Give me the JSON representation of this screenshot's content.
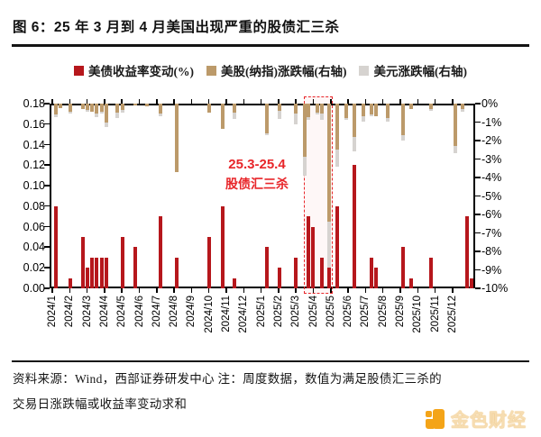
{
  "title": "图 6：25 年 3 月到 4 月美国出现严重的股债汇三杀",
  "legend": [
    {
      "label": "美债收益率变动(%)",
      "color": "#b6171c"
    },
    {
      "label": "美股(纳指)涨跌幅(右轴)",
      "color": "#bc9a6a"
    },
    {
      "label": "美元涨跌幅(右轴)",
      "color": "#d6d3d0"
    }
  ],
  "footer": {
    "line1": "资料来源：Wind，西部证券研发中心 注：周度数据，数值为满足股债汇三杀的",
    "line2": "交易日涨跌幅或收益率变动求和"
  },
  "watermark": {
    "text": "金色财经",
    "color": "#f4a418"
  },
  "chart_data": {
    "type": "bar",
    "title": "25年3月到4月美国出现严重的股债汇三杀",
    "note": "周度数据，数值为满足股债汇三杀的交易日涨跌幅或收益率变动求和",
    "left_axis": {
      "min": 0,
      "max": 0.18,
      "tick_step": 0.02,
      "ticks": [
        "0.18",
        "0.16",
        "0.14",
        "0.12",
        "0.10",
        "0.08",
        "0.06",
        "0.04",
        "0.02",
        "0.00"
      ]
    },
    "right_axis": {
      "min": -10,
      "max": 0,
      "tick_step": 1,
      "unit": "%",
      "ticks": [
        "0%",
        "-1%",
        "-2%",
        "-3%",
        "-4%",
        "-5%",
        "-6%",
        "-7%",
        "-8%",
        "-9%",
        "-10%"
      ]
    },
    "x_labels": [
      "2024/1",
      "2024/2",
      "2024/3",
      "2024/4",
      "2024/5",
      "2024/6",
      "2024/7",
      "2024/8",
      "2024/9",
      "2024/10",
      "2024/11",
      "2024/12",
      "2025/1",
      "2025/2",
      "2025/3",
      "2025/4",
      "2025/5",
      "2025/6",
      "2025/7",
      "2025/8",
      "2025/9",
      "2025/10",
      "2025/11",
      "2025/12"
    ],
    "series": [
      {
        "name": "美债收益率变动(%)",
        "axis": "left",
        "color": "#b6171c",
        "key": "bond"
      },
      {
        "name": "美股(纳指)涨跌幅(右轴)",
        "axis": "right",
        "color": "#bc9a6a",
        "key": "nasdaq"
      },
      {
        "name": "美元涨跌幅(右轴)",
        "axis": "right",
        "color": "#d6d3d0",
        "key": "usd"
      }
    ],
    "pos_unit": "months after 2024/1 tick (weekly bars)",
    "bars": [
      {
        "m": 0.21,
        "bond": 0.08,
        "nasdaq": -0.6,
        "usd": -0.15
      },
      {
        "m": 0.47,
        "nasdaq": -0.25
      },
      {
        "m": 1.04,
        "bond": 0.01,
        "nasdaq": -0.45,
        "usd": -0.1
      },
      {
        "m": 1.76,
        "bond": 0.05,
        "nasdaq": -0.3
      },
      {
        "m": 2.02,
        "bond": 0.02,
        "nasdaq": -0.35,
        "usd": -0.1
      },
      {
        "m": 2.28,
        "bond": 0.03,
        "nasdaq": -0.45
      },
      {
        "m": 2.54,
        "bond": 0.03,
        "nasdaq": -0.55,
        "usd": -0.2
      },
      {
        "m": 2.85,
        "bond": 0.03,
        "nasdaq": -0.45,
        "usd": -0.1
      },
      {
        "m": 3.11,
        "bond": 0.03,
        "nasdaq": -1.0,
        "usd": -0.25
      },
      {
        "m": 3.73,
        "nasdaq": -0.5,
        "usd": -0.3
      },
      {
        "m": 4.04,
        "bond": 0.05,
        "nasdaq": -0.35,
        "usd": -0.15
      },
      {
        "m": 4.77,
        "bond": 0.04,
        "nasdaq": -0.1
      },
      {
        "m": 5.44,
        "nasdaq": -0.15
      },
      {
        "m": 6.22,
        "bond": 0.07,
        "nasdaq": -0.55,
        "usd": -0.15
      },
      {
        "m": 7.15,
        "bond": 0.03,
        "nasdaq": -3.7
      },
      {
        "m": 9.01,
        "bond": 0.05,
        "nasdaq": -0.5
      },
      {
        "m": 9.79,
        "bond": 0.08,
        "nasdaq": -1.35
      },
      {
        "m": 10.47,
        "bond": 0.01,
        "nasdaq": -0.5,
        "usd": -0.35
      },
      {
        "m": 12.33,
        "bond": 0.04,
        "nasdaq": -1.6,
        "usd": -0.1
      },
      {
        "m": 13.06,
        "bond": 0.02,
        "nasdaq": -0.4,
        "usd": -0.45
      },
      {
        "m": 13.99,
        "bond": 0.03,
        "nasdaq": -0.55,
        "usd": -0.55
      },
      {
        "m": 14.51,
        "nasdaq": -2.9,
        "usd": -1.0
      },
      {
        "m": 14.72,
        "bond": 0.07,
        "nasdaq": -0.75,
        "usd": -0.15
      },
      {
        "m": 14.97,
        "bond": 0.06
      },
      {
        "m": 15.23,
        "nasdaq": -0.5,
        "usd": -0.1
      },
      {
        "m": 15.49,
        "bond": 0.03,
        "nasdaq": -0.55,
        "usd": -0.35
      },
      {
        "m": 15.91,
        "bond": 0.02,
        "nasdaq": -6.4,
        "usd": -2.5
      },
      {
        "m": 16.37,
        "bond": 0.08,
        "nasdaq": -2.5,
        "usd": -0.9
      },
      {
        "m": 16.89,
        "nasdaq": -0.8,
        "usd": -0.1
      },
      {
        "m": 17.36,
        "bond": 0.12,
        "nasdaq": -1.8,
        "usd": -0.8
      },
      {
        "m": 17.88,
        "nasdaq": -0.7,
        "usd": -0.3
      },
      {
        "m": 18.34,
        "bond": 0.03,
        "nasdaq": -0.6,
        "usd": -0.1
      },
      {
        "m": 18.6,
        "bond": 0.02,
        "nasdaq": -0.7
      },
      {
        "m": 19.27,
        "nasdaq": -0.8,
        "usd": -0.2
      },
      {
        "m": 20.16,
        "bond": 0.04,
        "nasdaq": -1.7,
        "usd": -0.3
      },
      {
        "m": 20.62,
        "bond": 0.01,
        "nasdaq": -0.3
      },
      {
        "m": 21.76,
        "bond": 0.03,
        "nasdaq": -0.3,
        "usd": -0.1
      },
      {
        "m": 23.16,
        "nasdaq": -2.3,
        "usd": -0.4
      },
      {
        "m": 23.57,
        "nasdaq": -0.3,
        "usd": -0.15
      },
      {
        "m": 23.83,
        "bond": 0.07
      },
      {
        "m": 24.09,
        "bond": 0.01
      }
    ],
    "annotation": {
      "line1": "25.3-25.4",
      "line2": "股债汇三杀",
      "color": "#e8262a",
      "box_month_from": 14.45,
      "box_month_to": 16.1
    },
    "legend_position": "top",
    "grid": false
  }
}
